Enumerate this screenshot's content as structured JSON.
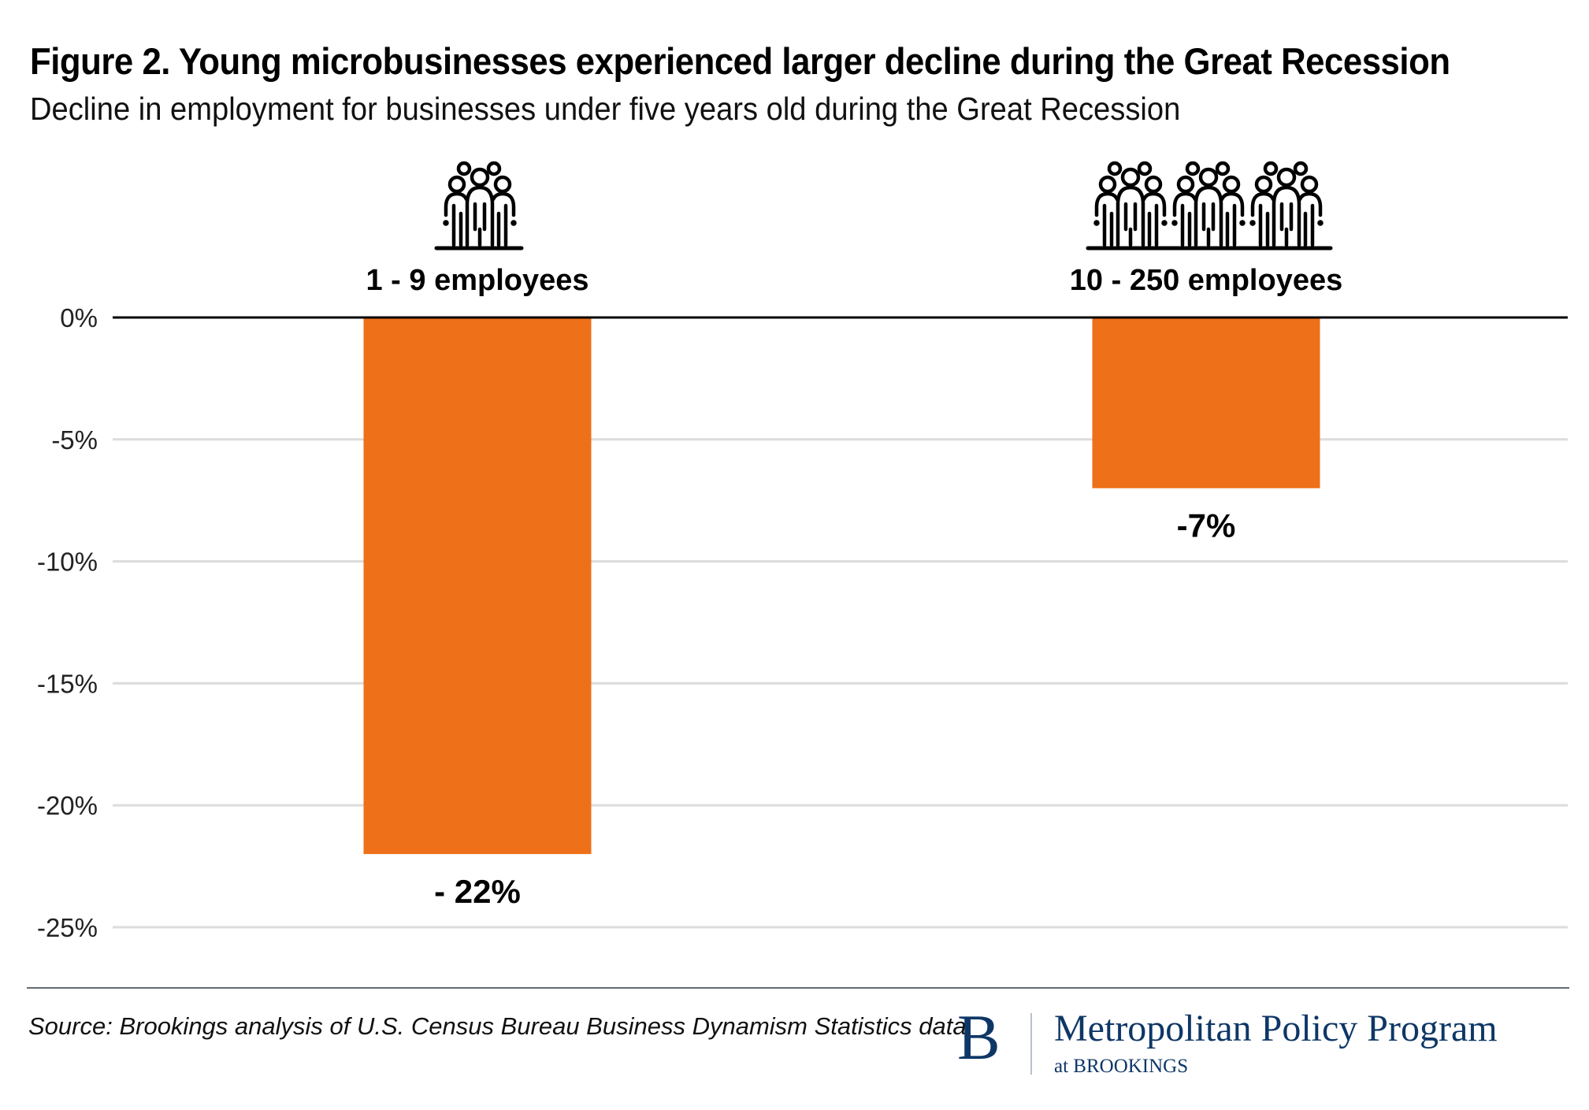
{
  "header": {
    "title": "Figure 2. Young microbusinesses experienced larger decline during the Great Recession",
    "subtitle": "Decline in employment for businesses under five years old during the Great Recession"
  },
  "chart_data": {
    "type": "bar",
    "title": "Figure 2. Young microbusinesses experienced larger decline during the Great Recession",
    "subtitle": "Decline in employment for businesses under five years old during the Great Recession",
    "xlabel": "",
    "ylabel": "",
    "categories": [
      "1 - 9 employees",
      "10 - 250 employees"
    ],
    "category_icons": [
      "people-group-icon",
      "people-crowd-icon"
    ],
    "values": [
      -22,
      -7
    ],
    "data_labels": [
      "- 22%",
      "-7%"
    ],
    "ylim": [
      -25,
      0
    ],
    "yticks": [
      0,
      -5,
      -10,
      -15,
      -20,
      -25
    ],
    "ytick_labels": [
      "0%",
      "-5%",
      "-10%",
      "-15%",
      "-20%",
      "-25%"
    ],
    "grid": true,
    "legend": "none",
    "bar_color": "#ee7019",
    "gridline_color": "#dcdcdc"
  },
  "footer": {
    "source": "Source: Brookings analysis of U.S. Census Bureau Business Dynamism Statistics data.",
    "logo_letter": "B",
    "logo_main": "Metropolitan Policy Program",
    "logo_sub": "at BROOKINGS",
    "logo_color": "#0e3766"
  }
}
